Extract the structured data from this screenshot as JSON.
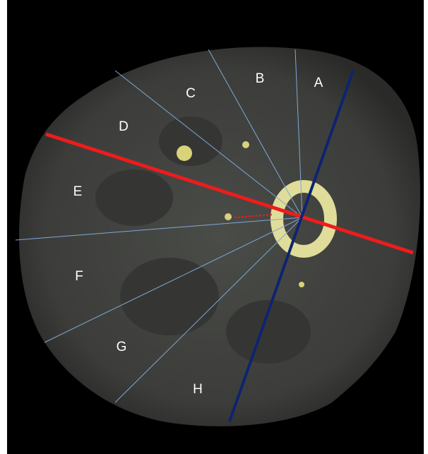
{
  "labels": [
    "A",
    "B",
    "C",
    "D",
    "E",
    "F",
    "G",
    "H"
  ]
}
